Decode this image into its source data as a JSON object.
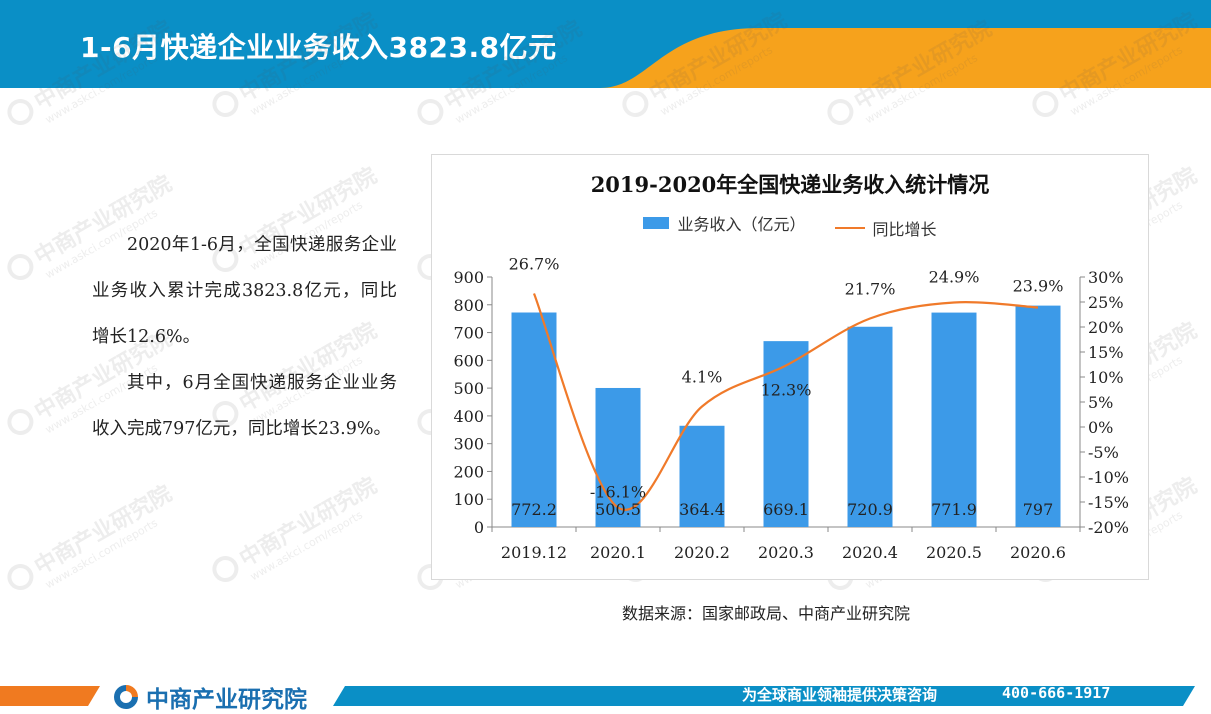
{
  "header": {
    "title": "1-6月快递企业业务收入3823.8亿元"
  },
  "body": {
    "paragraphs": [
      "2020年1-6月，全国快递服务企业业务收入累计完成3823.8亿元，同比增长12.6%。",
      "其中，6月全国快递服务企业业务收入完成797亿元，同比增长23.9%。"
    ]
  },
  "chart_data": {
    "type": "bar",
    "title": "2019-2020年全国快递业务收入统计情况",
    "categories": [
      "2019.12",
      "2020.1",
      "2020.2",
      "2020.3",
      "2020.4",
      "2020.5",
      "2020.6"
    ],
    "series": [
      {
        "name": "业务收入（亿元）",
        "type": "bar",
        "axis": "left",
        "values": [
          772.2,
          500.5,
          364.4,
          669.1,
          720.9,
          771.9,
          797
        ],
        "labels": [
          "772.2",
          "500.5",
          "364.4",
          "669.1",
          "720.9",
          "771.9",
          "797"
        ],
        "color": "#3c9ae8"
      },
      {
        "name": "同比增长",
        "type": "line",
        "axis": "right",
        "values": [
          26.7,
          -16.1,
          4.1,
          12.3,
          21.7,
          24.9,
          23.9
        ],
        "labels": [
          "26.7%",
          "-16.1%",
          "4.1%",
          "12.3%",
          "21.7%",
          "24.9%",
          "23.9%"
        ],
        "color": "#f07a2a"
      }
    ],
    "y_left": {
      "min": 0,
      "max": 900,
      "ticks": [
        "0",
        "100",
        "200",
        "300",
        "400",
        "500",
        "600",
        "700",
        "800",
        "900"
      ]
    },
    "y_right": {
      "min": -20,
      "max": 30,
      "ticks": [
        "-20%",
        "-15%",
        "-10%",
        "-5%",
        "0%",
        "5%",
        "10%",
        "15%",
        "20%",
        "25%",
        "30%"
      ]
    },
    "legend_position": "top",
    "grid": false
  },
  "source": "数据来源：国家邮政局、中商产业研究院",
  "footer": {
    "logo_text": "中商产业研究院",
    "slogan": "为全球商业领袖提供决策咨询",
    "phone": "400-666-1917"
  },
  "watermark": {
    "text": "中商产业研究院",
    "url": "www.askci.com/reports"
  },
  "colors": {
    "header_blue": "#0a8fc6",
    "header_orange": "#f6a21c",
    "bar_blue": "#3c9ae8",
    "line_orange": "#f07a2a"
  }
}
